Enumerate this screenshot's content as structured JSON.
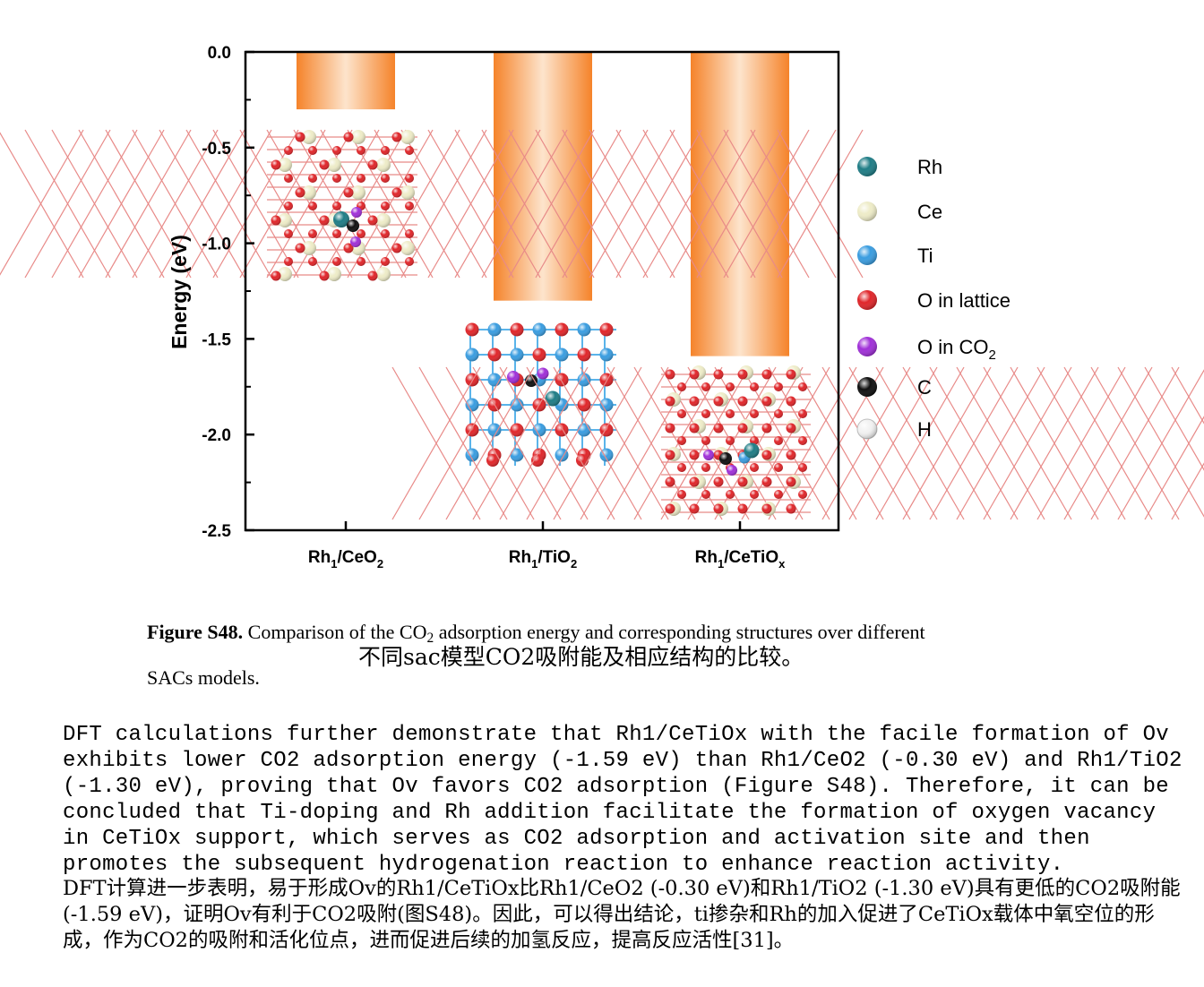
{
  "chart_data": {
    "type": "bar",
    "categories": [
      "Rh1/CeO2",
      "Rh1/TiO2",
      "Rh1/CeTiOx"
    ],
    "category_labels": [
      {
        "main": "Rh",
        "sub1": "1",
        "mid": "/CeO",
        "sub2": "2"
      },
      {
        "main": "Rh",
        "sub1": "1",
        "mid": "/TiO",
        "sub2": "2"
      },
      {
        "main": "Rh",
        "sub1": "1",
        "mid": "/CeTiO",
        "sub2": "x"
      }
    ],
    "values": [
      -0.3,
      -1.3,
      -1.59
    ],
    "ylabel": "Energy (eV)",
    "ylim": [
      -2.5,
      0.0
    ],
    "yticks": [
      "0.0",
      "-0.5",
      "-1.0",
      "-1.5",
      "-2.0",
      "-2.5"
    ],
    "ytick_values": [
      0.0,
      -0.5,
      -1.0,
      -1.5,
      -2.0,
      -2.5
    ],
    "bar_gradient": {
      "edge": "#f5832a",
      "center": "#fde4cc"
    },
    "legend_position": "right",
    "legend": [
      {
        "label": "Rh",
        "color": "#1f7d86"
      },
      {
        "label": "Ce",
        "color": "#eeecc8"
      },
      {
        "label": "Ti",
        "color": "#3a9de0"
      },
      {
        "label": "O in lattice",
        "color": "#e0262a"
      },
      {
        "label": "O in CO",
        "label_sub": "2",
        "color": "#a030d8"
      },
      {
        "label": "C",
        "color": "#101010"
      },
      {
        "label": "H",
        "color": "#f2f2f2"
      }
    ],
    "atom_colors": {
      "rh": "#1f7d86",
      "ce": "#eeecc8",
      "ti": "#3a9de0",
      "o_lattice": "#e0262a",
      "o_co2": "#a030d8",
      "c": "#101010"
    }
  },
  "caption": {
    "label": "Figure S48.",
    "text_before_sub": "Comparison of the CO",
    "text_sub": "2",
    "text_after_sub": " adsorption energy and corresponding structures over different",
    "text_line2": "SACs models.",
    "translation": "不同sac模型CO2吸附能及相应结构的比较。"
  },
  "body": {
    "english": "DFT calculations further demonstrate that Rh1/CeTiOx with the facile formation of Ov exhibits lower CO2 adsorption energy (-1.59 eV) than Rh1/CeO2 (-0.30 eV) and Rh1/TiO2 (-1.30 eV), proving that Ov favors CO2 adsorption (Figure S48). Therefore, it can be concluded that Ti-doping and Rh addition facilitate the formation of oxygen vacancy in CeTiOx support, which serves as CO2 adsorption and activation site and then promotes the subsequent hydrogenation reaction to enhance reaction activity.",
    "chinese": "DFT计算进一步表明，易于形成Ov的Rh1/CeTiOx比Rh1/CeO2 (-0.30 eV)和Rh1/TiO2 (-1.30 eV)具有更低的CO2吸附能(-1.59 eV)，证明Ov有利于CO2吸附(图S48)。因此，可以得出结论，ti掺杂和Rh的加入促进了CeTiOx载体中氧空位的形成，作为CO2的吸附和活化位点，进而促进后续的加氢反应，提高反应活性[31]。"
  }
}
